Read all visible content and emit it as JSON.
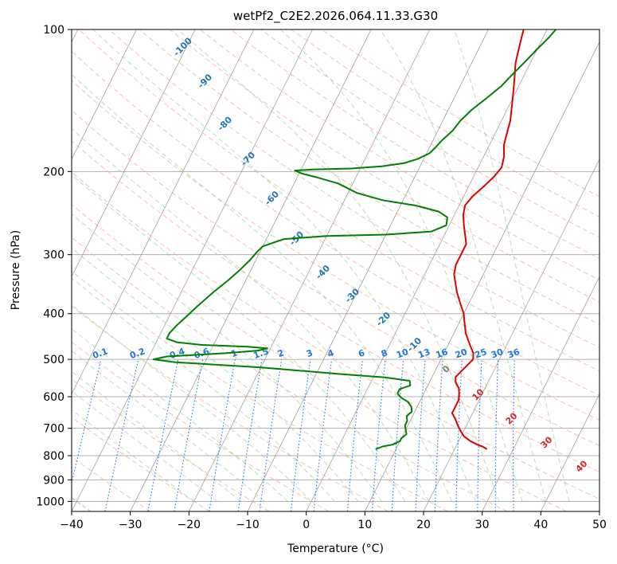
{
  "chart_data": {
    "type": "skew-t log-p",
    "title": "wetPf2_C2E2.2026.064.11.33.G30",
    "xlabel": "Temperature (°C)",
    "ylabel": "Pressure (hPa)",
    "xlim": [
      -40,
      50
    ],
    "ylim_hpa": [
      1050,
      100
    ],
    "x_ticks": [
      -40,
      -30,
      -20,
      -10,
      0,
      10,
      20,
      30,
      40,
      50
    ],
    "y_ticks": [
      100,
      200,
      300,
      400,
      500,
      600,
      700,
      800,
      900,
      1000
    ],
    "grid": true,
    "colors": {
      "temperature": "#e00000",
      "dewpoint": "#008000",
      "dry_adiabat": "#f4a582",
      "moist_adiabat": "#8fd18f",
      "mixing_ratio": "#1f77e0",
      "isotherm": "#7f7f7f",
      "freezing_level_curve": "#d2b48c"
    },
    "series": [
      {
        "name": "temperature",
        "points": [
          [
            25.5,
            775
          ],
          [
            24.5,
            765
          ],
          [
            23.5,
            758
          ],
          [
            22.0,
            745
          ],
          [
            20.5,
            728
          ],
          [
            19.5,
            710
          ],
          [
            18.5,
            690
          ],
          [
            17.5,
            668
          ],
          [
            16.5,
            650
          ],
          [
            16.5,
            630
          ],
          [
            16.5,
            610
          ],
          [
            16.0,
            590
          ],
          [
            15.5,
            575
          ],
          [
            14.5,
            560
          ],
          [
            14.0,
            545
          ],
          [
            14.5,
            530
          ],
          [
            15.0,
            515
          ],
          [
            15.5,
            500
          ],
          [
            15.0,
            485
          ],
          [
            14.0,
            470
          ],
          [
            13.0,
            455
          ],
          [
            12.0,
            440
          ],
          [
            11.0,
            420
          ],
          [
            10.0,
            400
          ],
          [
            8.5,
            380
          ],
          [
            7.0,
            360
          ],
          [
            6.0,
            345
          ],
          [
            5.0,
            330
          ],
          [
            4.5,
            315
          ],
          [
            4.5,
            300
          ],
          [
            4.5,
            285
          ],
          [
            3.5,
            272
          ],
          [
            2.5,
            260
          ],
          [
            1.5,
            247
          ],
          [
            1.0,
            236
          ],
          [
            1.5,
            226
          ],
          [
            2.5,
            216
          ],
          [
            3.5,
            205
          ],
          [
            4.0,
            196
          ],
          [
            3.5,
            186
          ],
          [
            2.5,
            176
          ],
          [
            2.0,
            166
          ],
          [
            1.5,
            156
          ],
          [
            0.5,
            145
          ],
          [
            -0.5,
            135
          ],
          [
            -1.5,
            126
          ],
          [
            -2.5,
            118
          ],
          [
            -3.0,
            112
          ],
          [
            -3.5,
            106
          ],
          [
            -4.0,
            100
          ]
        ]
      },
      {
        "name": "dewpoint",
        "points": [
          [
            6.5,
            775
          ],
          [
            7.5,
            765
          ],
          [
            9.0,
            758
          ],
          [
            10.0,
            745
          ],
          [
            10.0,
            735
          ],
          [
            10.5,
            720
          ],
          [
            10.0,
            705
          ],
          [
            9.5,
            690
          ],
          [
            9.5,
            675
          ],
          [
            9.0,
            660
          ],
          [
            9.5,
            645
          ],
          [
            9.0,
            630
          ],
          [
            8.0,
            615
          ],
          [
            6.5,
            603
          ],
          [
            5.5,
            590
          ],
          [
            5.5,
            578
          ],
          [
            7.0,
            568
          ],
          [
            6.5,
            555
          ],
          [
            2.0,
            546
          ],
          [
            -6.0,
            537
          ],
          [
            -20.0,
            520
          ],
          [
            -35.0,
            507
          ],
          [
            -39.0,
            500
          ],
          [
            -37.0,
            493
          ],
          [
            -27.0,
            485
          ],
          [
            -22.0,
            479
          ],
          [
            -20.5,
            474
          ],
          [
            -24.0,
            470
          ],
          [
            -32.0,
            466
          ],
          [
            -36.5,
            460
          ],
          [
            -38.5,
            452
          ],
          [
            -38.5,
            440
          ],
          [
            -38.0,
            425
          ],
          [
            -37.0,
            405
          ],
          [
            -36.0,
            385
          ],
          [
            -34.5,
            360
          ],
          [
            -33.0,
            340
          ],
          [
            -32.0,
            325
          ],
          [
            -31.0,
            308
          ],
          [
            -30.5,
            296
          ],
          [
            -30.0,
            288
          ],
          [
            -27.0,
            278
          ],
          [
            -20.0,
            274
          ],
          [
            -10.0,
            272
          ],
          [
            -2.5,
            268
          ],
          [
            -0.5,
            260
          ],
          [
            -1.0,
            250
          ],
          [
            -3.0,
            243
          ],
          [
            -7.5,
            236
          ],
          [
            -13.5,
            230
          ],
          [
            -18.5,
            222
          ],
          [
            -22.5,
            212
          ],
          [
            -26.5,
            206
          ],
          [
            -29.5,
            202
          ],
          [
            -31.0,
            199
          ],
          [
            -28.0,
            198
          ],
          [
            -21.5,
            197
          ],
          [
            -16.5,
            195
          ],
          [
            -13.0,
            192
          ],
          [
            -11.0,
            188
          ],
          [
            -9.5,
            183
          ],
          [
            -9.0,
            178
          ],
          [
            -8.5,
            172
          ],
          [
            -7.5,
            164
          ],
          [
            -7.0,
            156
          ],
          [
            -6.0,
            148
          ],
          [
            -4.5,
            140
          ],
          [
            -3.0,
            132
          ],
          [
            -2.0,
            124
          ],
          [
            -1.0,
            117
          ],
          [
            0.0,
            110
          ],
          [
            1.0,
            104
          ],
          [
            1.5,
            100
          ]
        ]
      }
    ],
    "dry_adiabat_labels": [
      "0",
      "10",
      "20",
      "30",
      "40"
    ],
    "moist_adiabat_labels": [
      "-100",
      "-90",
      "-80",
      "-70",
      "-60",
      "-50",
      "-40",
      "-30",
      "-20",
      "-10"
    ],
    "mixing_ratio_labels": [
      "0.1",
      "0.2",
      "0.4",
      "0.6",
      "1",
      "1.5",
      "2",
      "3",
      "4",
      "6",
      "8",
      "10",
      "13",
      "16",
      "20",
      "25",
      "30",
      "36"
    ]
  }
}
